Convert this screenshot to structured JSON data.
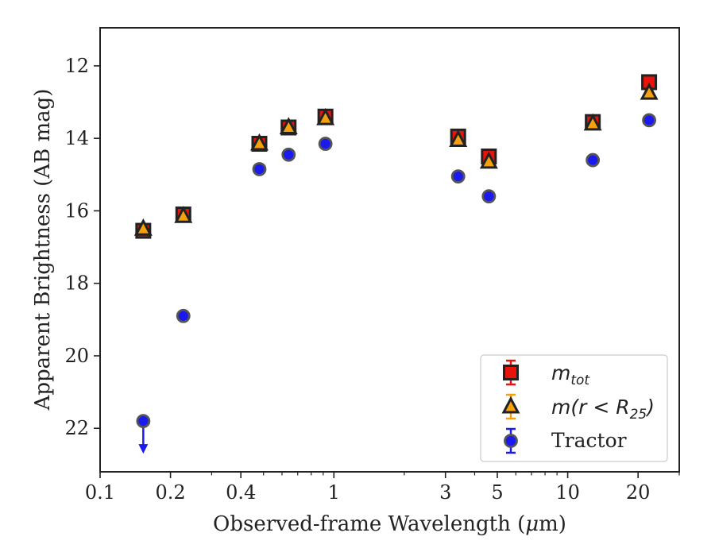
{
  "chart_data": {
    "type": "scatter",
    "title": "",
    "xlabel": "Observed-frame Wavelength (",
    "xlabel_unit": "μ",
    "xlabel_suffix": "m)",
    "ylabel": "Apparent Brightness (AB mag)",
    "xscale": "log",
    "xlim": [
      0.1,
      30
    ],
    "ylim": [
      23.2,
      10.95
    ],
    "y_inverted": true,
    "x_ticks": [
      0.1,
      0.2,
      0.4,
      1,
      3,
      5,
      10,
      20
    ],
    "x_tick_labels": [
      "0.1",
      "0.2",
      "0.4",
      "1",
      "3",
      "5",
      "10",
      "20"
    ],
    "y_ticks": [
      12,
      14,
      16,
      18,
      20,
      22
    ],
    "y_tick_labels": [
      "12",
      "14",
      "16",
      "18",
      "20",
      "22"
    ],
    "grid": false,
    "legend_position": "bottom-right",
    "series": [
      {
        "name": "m_tot",
        "legend_main": "m",
        "legend_sub": "tot",
        "marker": "square",
        "color": "#e8140c",
        "edge": "#222222",
        "points": [
          {
            "x": 0.153,
            "y": 16.55
          },
          {
            "x": 0.227,
            "y": 16.1
          },
          {
            "x": 0.48,
            "y": 14.15
          },
          {
            "x": 0.64,
            "y": 13.7
          },
          {
            "x": 0.92,
            "y": 13.4
          },
          {
            "x": 3.4,
            "y": 13.95
          },
          {
            "x": 4.6,
            "y": 14.5
          },
          {
            "x": 12.8,
            "y": 13.55
          },
          {
            "x": 22.3,
            "y": 12.45
          }
        ]
      },
      {
        "name": "m(r < R_25)",
        "legend_main": "m(r < R",
        "legend_sub": "25",
        "legend_end": ")",
        "marker": "triangle",
        "color": "#f5a00c",
        "edge": "#222222",
        "points": [
          {
            "x": 0.153,
            "y": 16.5
          },
          {
            "x": 0.227,
            "y": 16.15
          },
          {
            "x": 0.48,
            "y": 14.15
          },
          {
            "x": 0.64,
            "y": 13.7
          },
          {
            "x": 0.92,
            "y": 13.45
          },
          {
            "x": 3.4,
            "y": 14.05
          },
          {
            "x": 4.6,
            "y": 14.65
          },
          {
            "x": 12.8,
            "y": 13.6
          },
          {
            "x": 22.3,
            "y": 12.75
          }
        ]
      },
      {
        "name": "Tractor",
        "legend_main": "Tractor",
        "marker": "circle",
        "color": "#1a1aee",
        "edge": "#555555",
        "points": [
          {
            "x": 0.153,
            "y": 21.8,
            "upper_limit": true
          },
          {
            "x": 0.227,
            "y": 18.9
          },
          {
            "x": 0.48,
            "y": 14.85
          },
          {
            "x": 0.64,
            "y": 14.45
          },
          {
            "x": 0.92,
            "y": 14.15
          },
          {
            "x": 3.4,
            "y": 15.05
          },
          {
            "x": 4.6,
            "y": 15.6
          },
          {
            "x": 12.8,
            "y": 14.6
          },
          {
            "x": 22.3,
            "y": 13.5
          }
        ]
      }
    ]
  }
}
